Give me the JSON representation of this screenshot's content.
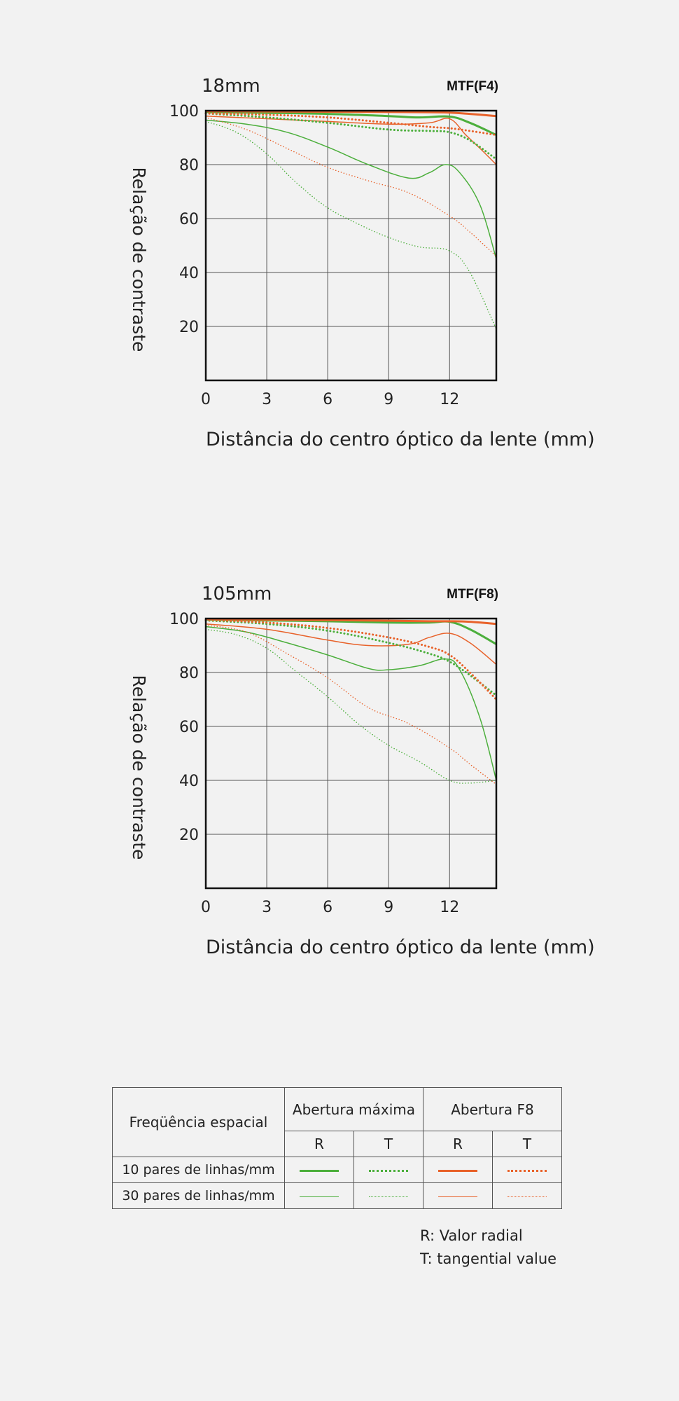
{
  "colors": {
    "green": "#4caf3c",
    "orange": "#e8622a",
    "grid": "#555555",
    "frame": "#111111"
  },
  "chart_data": [
    {
      "type": "line",
      "focal_label": "18mm",
      "mtf_label": "MTF(F4)",
      "ylabel": "Relação de contraste",
      "xlabel": "Distância do centro óptico da lente (mm)",
      "xlim": [
        0,
        14.3
      ],
      "ylim": [
        0,
        100
      ],
      "xticks": [
        0,
        3,
        6,
        9,
        12
      ],
      "yticks": [
        20,
        40,
        60,
        80,
        100
      ],
      "grid": true,
      "series": [
        {
          "color": "green",
          "style": "solid",
          "weight": "thick",
          "points": [
            [
              0,
              99.5
            ],
            [
              3,
              99.2
            ],
            [
              6,
              98.8
            ],
            [
              9,
              98.0
            ],
            [
              10.5,
              97.5
            ],
            [
              12,
              97.8
            ],
            [
              13,
              95.5
            ],
            [
              14.3,
              91
            ]
          ]
        },
        {
          "color": "green",
          "style": "dotted",
          "weight": "thick",
          "points": [
            [
              0,
              99
            ],
            [
              3,
              97.5
            ],
            [
              6,
              95.5
            ],
            [
              9,
              93
            ],
            [
              11,
              92.5
            ],
            [
              12,
              92
            ],
            [
              13,
              89
            ],
            [
              14.3,
              82
            ]
          ]
        },
        {
          "color": "orange",
          "style": "solid",
          "weight": "thick",
          "points": [
            [
              0,
              99.8
            ],
            [
              3,
              99.7
            ],
            [
              6,
              99.6
            ],
            [
              9,
              99.5
            ],
            [
              11,
              99.4
            ],
            [
              12,
              99.3
            ],
            [
              13,
              98.8
            ],
            [
              14.3,
              98
            ]
          ]
        },
        {
          "color": "orange",
          "style": "dotted",
          "weight": "thick",
          "points": [
            [
              0,
              99
            ],
            [
              3,
              98.5
            ],
            [
              6,
              97.5
            ],
            [
              9,
              95.5
            ],
            [
              11,
              94
            ],
            [
              12,
              93.5
            ],
            [
              13,
              92.5
            ],
            [
              14.3,
              91
            ]
          ]
        },
        {
          "color": "green",
          "style": "solid",
          "weight": "thin",
          "points": [
            [
              0,
              96.5
            ],
            [
              2,
              95
            ],
            [
              4,
              92
            ],
            [
              6,
              86.5
            ],
            [
              8,
              80
            ],
            [
              10,
              75
            ],
            [
              11,
              77
            ],
            [
              11.8,
              80
            ],
            [
              12.5,
              77
            ],
            [
              13.5,
              65
            ],
            [
              14.3,
              45
            ]
          ]
        },
        {
          "color": "green",
          "style": "dotted",
          "weight": "thin",
          "points": [
            [
              0,
              96
            ],
            [
              1.5,
              92
            ],
            [
              3,
              84
            ],
            [
              4.5,
              73
            ],
            [
              6,
              64
            ],
            [
              7.5,
              58
            ],
            [
              9,
              53
            ],
            [
              10.5,
              49.5
            ],
            [
              12,
              48
            ],
            [
              13,
              40
            ],
            [
              14.3,
              19
            ]
          ]
        },
        {
          "color": "orange",
          "style": "solid",
          "weight": "thin",
          "points": [
            [
              0,
              98
            ],
            [
              3,
              97
            ],
            [
              6,
              96
            ],
            [
              9,
              95
            ],
            [
              11,
              95.5
            ],
            [
              12,
              97
            ],
            [
              12.8,
              91
            ],
            [
              13.5,
              86
            ],
            [
              14.3,
              80
            ]
          ]
        },
        {
          "color": "orange",
          "style": "dotted",
          "weight": "thin",
          "points": [
            [
              0,
              97.5
            ],
            [
              2,
              93
            ],
            [
              4,
              86
            ],
            [
              6,
              79
            ],
            [
              8,
              74
            ],
            [
              10,
              69.5
            ],
            [
              12,
              61
            ],
            [
              13,
              55
            ],
            [
              14.3,
              46
            ]
          ]
        }
      ]
    },
    {
      "type": "line",
      "focal_label": "105mm",
      "mtf_label": "MTF(F8)",
      "ylabel": "Relação de contraste",
      "xlabel": "Distância do centro óptico da lente (mm)",
      "xlim": [
        0,
        14.3
      ],
      "ylim": [
        0,
        100
      ],
      "xticks": [
        0,
        3,
        6,
        9,
        12
      ],
      "yticks": [
        20,
        40,
        60,
        80,
        100
      ],
      "grid": true,
      "series": [
        {
          "color": "green",
          "style": "solid",
          "weight": "thick",
          "points": [
            [
              0,
              99.6
            ],
            [
              3,
              99.3
            ],
            [
              6,
              99
            ],
            [
              9,
              98.5
            ],
            [
              11,
              98.5
            ],
            [
              12,
              98.8
            ],
            [
              13,
              96
            ],
            [
              14.3,
              90.5
            ]
          ]
        },
        {
          "color": "green",
          "style": "dotted",
          "weight": "thick",
          "points": [
            [
              0,
              99.3
            ],
            [
              3,
              98
            ],
            [
              6,
              95.5
            ],
            [
              9,
              91
            ],
            [
              11,
              87
            ],
            [
              12,
              84
            ],
            [
              13,
              79
            ],
            [
              14.3,
              71.5
            ]
          ]
        },
        {
          "color": "orange",
          "style": "solid",
          "weight": "thick",
          "points": [
            [
              0,
              99.8
            ],
            [
              3,
              99.6
            ],
            [
              6,
              99.4
            ],
            [
              9,
              99.2
            ],
            [
              11,
              99
            ],
            [
              12,
              99
            ],
            [
              13,
              98.8
            ],
            [
              14.3,
              98
            ]
          ]
        },
        {
          "color": "orange",
          "style": "dotted",
          "weight": "thick",
          "points": [
            [
              0,
              99.5
            ],
            [
              3,
              98.5
            ],
            [
              6,
              96.5
            ],
            [
              9,
              93
            ],
            [
              11,
              89.5
            ],
            [
              12,
              86.5
            ],
            [
              13,
              80
            ],
            [
              14.3,
              70
            ]
          ]
        },
        {
          "color": "green",
          "style": "solid",
          "weight": "thin",
          "points": [
            [
              0,
              97
            ],
            [
              2,
              95
            ],
            [
              4,
              91
            ],
            [
              6,
              86.5
            ],
            [
              8,
              81.5
            ],
            [
              9,
              81
            ],
            [
              10.5,
              82.5
            ],
            [
              11.8,
              85
            ],
            [
              12.5,
              81
            ],
            [
              13.5,
              63
            ],
            [
              14.3,
              40
            ]
          ]
        },
        {
          "color": "green",
          "style": "dotted",
          "weight": "thin",
          "points": [
            [
              0,
              96
            ],
            [
              1.5,
              94
            ],
            [
              3,
              89
            ],
            [
              4.5,
              80
            ],
            [
              6,
              71
            ],
            [
              7.5,
              61
            ],
            [
              9,
              53
            ],
            [
              10.5,
              47
            ],
            [
              12,
              40
            ],
            [
              13,
              39
            ],
            [
              14.3,
              40
            ]
          ]
        },
        {
          "color": "orange",
          "style": "solid",
          "weight": "thin",
          "points": [
            [
              0,
              98
            ],
            [
              3,
              96
            ],
            [
              6,
              92
            ],
            [
              8,
              90
            ],
            [
              10,
              90.5
            ],
            [
              11,
              93
            ],
            [
              12,
              94.5
            ],
            [
              13,
              91
            ],
            [
              14.3,
              83
            ]
          ]
        },
        {
          "color": "orange",
          "style": "dotted",
          "weight": "thin",
          "points": [
            [
              0,
              97.5
            ],
            [
              2,
              95
            ],
            [
              4,
              87
            ],
            [
              6,
              78
            ],
            [
              8,
              67
            ],
            [
              10,
              61
            ],
            [
              12,
              52
            ],
            [
              13,
              46
            ],
            [
              14.3,
              38.5
            ]
          ]
        }
      ]
    }
  ],
  "legend": {
    "freq_header": "Freqüência espacial",
    "aperture_max": "Abertura máxima",
    "aperture_f8": "Abertura F8",
    "r": "R",
    "t": "T",
    "rows": [
      {
        "label": "10 pares de linhas/mm",
        "weight": "thick"
      },
      {
        "label": "30 pares de linhas/mm",
        "weight": "thin"
      }
    ]
  },
  "notes": {
    "r_note": "R: Valor radial",
    "t_note": "T: tangential value"
  }
}
